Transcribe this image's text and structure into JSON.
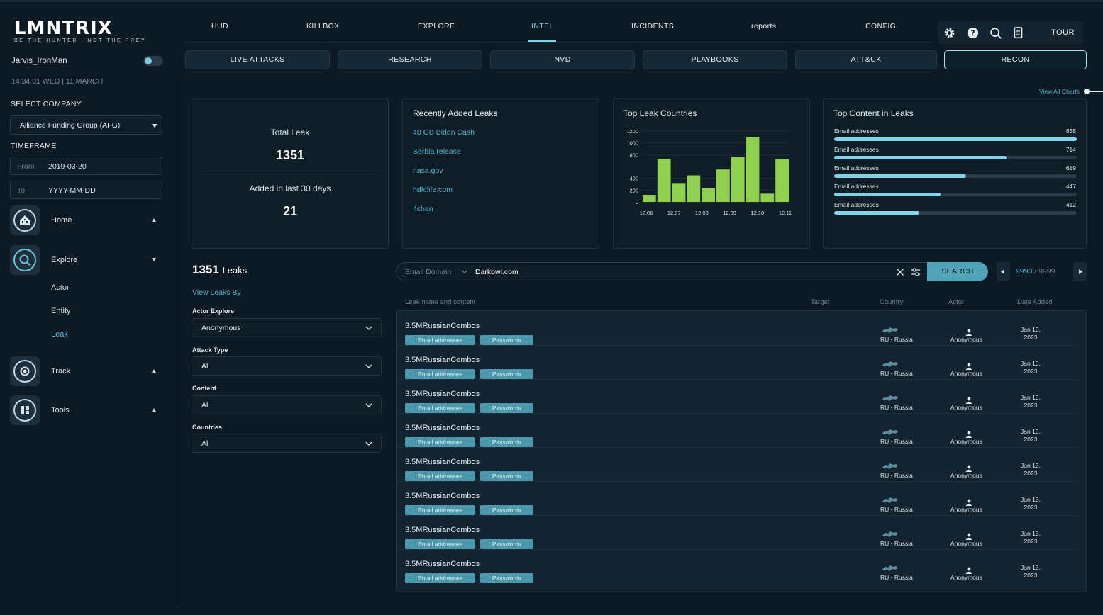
{
  "brand": {
    "name": "LMNTRIX",
    "tagline": "BE THE HUNTER | NOT THE PREY"
  },
  "user": {
    "name": "Jarvis_IronMan",
    "datetime": "14:34:01 WED | 11 MARCH"
  },
  "sidebar": {
    "select_company_label": "SELECT COMPANY",
    "company": "Alliance Funding Group (AFG)",
    "timeframe_label": "TIMEFRAME",
    "from_label": "From",
    "from_value": "2019-03-20",
    "to_label": "To",
    "to_value": "YYYY-MM-DD",
    "nav": {
      "home": "Home",
      "explore": "Explore",
      "explore_sub": [
        "Actor",
        "Entity",
        "Leak"
      ],
      "track": "Track",
      "tools": "Tools"
    }
  },
  "topnav": [
    "HUD",
    "KILLBOX",
    "EXPLORE",
    "INTEL",
    "INCIDENTS",
    "reports",
    "CONFIG"
  ],
  "toolbar": {
    "tour": "TOUR"
  },
  "subnav": [
    "LIVE ATTACKS",
    "RESEARCH",
    "NVD",
    "PLAYBOOKS",
    "ATT&CK",
    "RECON"
  ],
  "view_all_charts": "View All Charts",
  "cards": {
    "total": {
      "label": "Total Leak",
      "value": "1351",
      "added_label": "Added in last 30 days",
      "added_value": "21"
    },
    "recent": {
      "title": "Recently Added Leaks",
      "items": [
        "40 GB Biden Cash",
        "Serbia release",
        "nasa.gov",
        "hdfclife.com",
        "4chan"
      ]
    },
    "countries": {
      "title": "Top Leak Countries"
    },
    "content": {
      "title": "Top Content in Leaks",
      "items": [
        {
          "label": "Email addresses",
          "value": "835",
          "fill": 1.0
        },
        {
          "label": "Email addresses",
          "value": "714",
          "fill": 0.71
        },
        {
          "label": "Email addresses",
          "value": "619",
          "fill": 0.545
        },
        {
          "label": "Email addresses",
          "value": "447",
          "fill": 0.44
        },
        {
          "label": "Email addresses",
          "value": "412",
          "fill": 0.35
        }
      ]
    }
  },
  "chart_data": {
    "type": "bar",
    "title": "Top Leak Countries",
    "ylim": [
      0,
      1200
    ],
    "yticks": [
      "0",
      "200",
      "400",
      "800",
      "1000",
      "1200"
    ],
    "ytick_values": [
      0,
      200,
      400,
      800,
      1000,
      1200
    ],
    "xticks": [
      "12.06",
      "12.07",
      "12.08",
      "12.09",
      "12.10",
      "12.11"
    ],
    "values": [
      120,
      720,
      320,
      450,
      230,
      550,
      760,
      1100,
      140,
      730
    ],
    "color": "#8fd14f"
  },
  "filters": {
    "count": "1351",
    "count_suffix": "Leaks",
    "view_by": "View Leaks By",
    "actor_label": "Actor Explore",
    "actor_value": "Anonymous",
    "attack_label": "Attack Type",
    "attack_value": "All",
    "content_label": "Content",
    "content_value": "All",
    "countries_label": "Countries",
    "countries_value": "All"
  },
  "search": {
    "type": "Email Domain",
    "value": "Darkowl.com",
    "button": "SEARCH"
  },
  "pager": {
    "current": "9998",
    "sep": "/",
    "total": "9999"
  },
  "table": {
    "headers": [
      "Leak name and content",
      "Target",
      "Country",
      "Actor",
      "Date Added"
    ],
    "rows": [
      {
        "name": "3.5MRussianCombos",
        "tags": [
          "Email addresses",
          "Passwords"
        ],
        "country": "RU - Russia",
        "actor": "Anonymous",
        "date1": "Jan 13,",
        "date2": "2023"
      },
      {
        "name": "3.5MRussianCombos",
        "tags": [
          "Email addresses",
          "Passwords"
        ],
        "country": "RU - Russia",
        "actor": "Anonymous",
        "date1": "Jan 13,",
        "date2": "2023"
      },
      {
        "name": "3.5MRussianCombos",
        "tags": [
          "Email addresses",
          "Passwords"
        ],
        "country": "RU - Russia",
        "actor": "Anonymous",
        "date1": "Jan 13,",
        "date2": "2023"
      },
      {
        "name": "3.5MRussianCombos",
        "tags": [
          "Email addresses",
          "Passwords"
        ],
        "country": "RU - Russia",
        "actor": "Anonymous",
        "date1": "Jan 13,",
        "date2": "2023"
      },
      {
        "name": "3.5MRussianCombos",
        "tags": [
          "Email addresses",
          "Passwords"
        ],
        "country": "RU - Russia",
        "actor": "Anonymous",
        "date1": "Jan 13,",
        "date2": "2023"
      },
      {
        "name": "3.5MRussianCombos",
        "tags": [
          "Email addresses",
          "Passwords"
        ],
        "country": "RU - Russia",
        "actor": "Anonymous",
        "date1": "Jan 13,",
        "date2": "2023"
      },
      {
        "name": "3.5MRussianCombos",
        "tags": [
          "Email addresses",
          "Passwords"
        ],
        "country": "RU - Russia",
        "actor": "Anonymous",
        "date1": "Jan 13,",
        "date2": "2023"
      },
      {
        "name": "3.5MRussianCombos",
        "tags": [
          "Email addresses",
          "Passwords"
        ],
        "country": "RU - Russia",
        "actor": "Anonymous",
        "date1": "Jan 13,",
        "date2": "2023"
      }
    ]
  }
}
